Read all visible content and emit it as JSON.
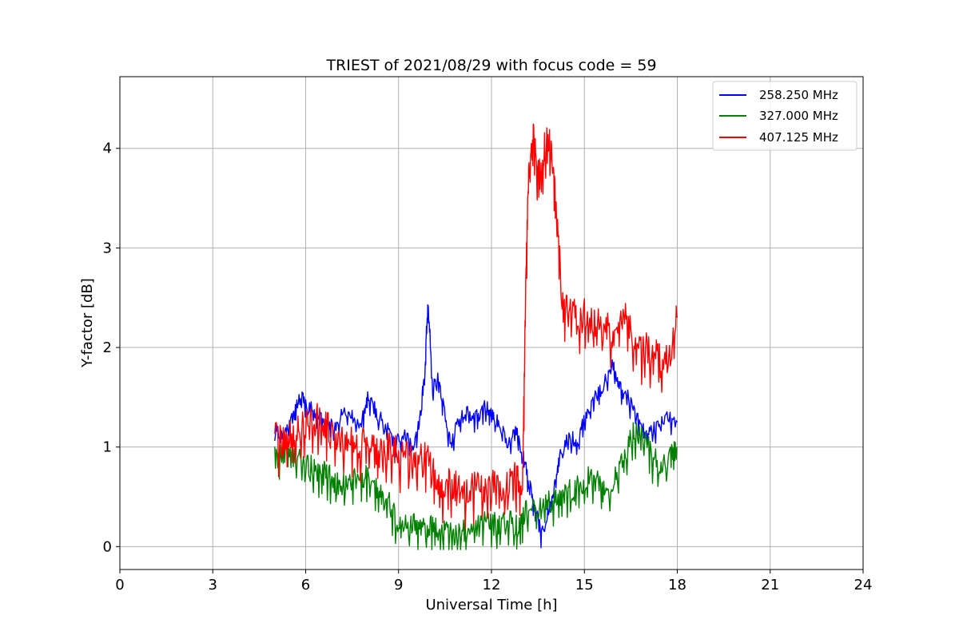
{
  "chart_data": {
    "type": "line",
    "title": "TRIEST of 2021/08/29 with focus code = 59",
    "xlabel": "Universal Time [h]",
    "ylabel": "Y-factor [dB]",
    "xlim": [
      0,
      24
    ],
    "ylim": [
      -0.23,
      4.72
    ],
    "xticks": [
      0,
      3,
      6,
      9,
      12,
      15,
      18,
      21,
      24
    ],
    "yticks": [
      0,
      1,
      2,
      3,
      4
    ],
    "grid": true,
    "legend_position": "top-right",
    "series": [
      {
        "name": "258.250 MHz",
        "color": "#0000ff",
        "x": [
          5.0,
          5.3,
          5.6,
          5.8,
          6.0,
          6.3,
          6.6,
          6.9,
          7.2,
          7.5,
          7.8,
          8.0,
          8.3,
          8.6,
          8.9,
          9.2,
          9.5,
          9.7,
          9.85,
          9.95,
          10.1,
          10.3,
          10.5,
          10.7,
          10.9,
          11.2,
          11.5,
          11.8,
          12.0,
          12.2,
          12.5,
          12.8,
          13.0,
          13.2,
          13.4,
          13.6,
          13.8,
          14.0,
          14.2,
          14.5,
          14.8,
          15.0,
          15.3,
          15.6,
          15.9,
          16.1,
          16.4,
          16.7,
          17.0,
          17.3,
          17.6,
          18.0
        ],
        "y": [
          1.2,
          1.1,
          1.3,
          1.5,
          1.45,
          1.35,
          1.3,
          1.2,
          1.35,
          1.3,
          1.25,
          1.5,
          1.35,
          1.2,
          1.05,
          1.1,
          1.0,
          1.3,
          1.8,
          2.5,
          1.6,
          1.7,
          1.3,
          1.0,
          1.25,
          1.35,
          1.3,
          1.4,
          1.35,
          1.25,
          1.05,
          1.15,
          0.95,
          0.65,
          0.4,
          0.15,
          0.3,
          0.55,
          0.9,
          1.1,
          1.05,
          1.3,
          1.5,
          1.6,
          1.85,
          1.6,
          1.5,
          1.3,
          1.15,
          1.2,
          1.3,
          1.25
        ]
      },
      {
        "name": "327.000 MHz",
        "color": "#008000",
        "x": [
          5.0,
          5.3,
          5.6,
          5.9,
          6.2,
          6.5,
          6.8,
          7.1,
          7.4,
          7.7,
          8.0,
          8.3,
          8.6,
          8.9,
          9.2,
          9.5,
          9.8,
          10.1,
          10.4,
          10.7,
          11.0,
          11.3,
          11.6,
          11.9,
          12.2,
          12.5,
          12.8,
          13.0,
          13.3,
          13.6,
          13.9,
          14.2,
          14.5,
          14.8,
          15.1,
          15.4,
          15.7,
          16.0,
          16.3,
          16.6,
          16.9,
          17.2,
          17.5,
          17.8,
          18.0
        ],
        "y": [
          0.9,
          0.95,
          0.9,
          0.85,
          0.8,
          0.75,
          0.7,
          0.6,
          0.65,
          0.7,
          0.7,
          0.55,
          0.5,
          0.3,
          0.2,
          0.22,
          0.18,
          0.2,
          0.15,
          0.12,
          0.13,
          0.18,
          0.2,
          0.25,
          0.22,
          0.3,
          0.2,
          0.28,
          0.45,
          0.4,
          0.45,
          0.5,
          0.55,
          0.6,
          0.7,
          0.65,
          0.5,
          0.7,
          0.9,
          1.15,
          1.1,
          0.9,
          0.8,
          0.9,
          1.0
        ]
      },
      {
        "name": "407.125 MHz",
        "color": "#ff0000",
        "x": [
          5.0,
          5.3,
          5.6,
          5.9,
          6.2,
          6.5,
          6.8,
          7.1,
          7.4,
          7.7,
          8.0,
          8.3,
          8.6,
          8.9,
          9.2,
          9.5,
          9.8,
          10.1,
          10.4,
          10.7,
          11.0,
          11.3,
          11.6,
          11.9,
          12.2,
          12.5,
          12.8,
          13.0,
          13.1,
          13.2,
          13.35,
          13.5,
          13.65,
          13.8,
          13.95,
          14.1,
          14.3,
          14.5,
          14.8,
          15.1,
          15.4,
          15.7,
          16.0,
          16.3,
          16.6,
          16.9,
          17.2,
          17.5,
          17.8,
          18.0
        ],
        "y": [
          1.1,
          1.05,
          1.15,
          1.2,
          1.3,
          1.25,
          1.15,
          1.1,
          1.05,
          1.0,
          1.05,
          0.95,
          1.0,
          0.95,
          0.9,
          0.85,
          0.9,
          0.8,
          0.6,
          0.65,
          0.55,
          0.55,
          0.6,
          0.55,
          0.65,
          0.6,
          0.7,
          0.55,
          2.5,
          3.8,
          4.1,
          3.7,
          3.85,
          4.2,
          3.9,
          3.3,
          2.4,
          2.45,
          2.3,
          2.35,
          2.25,
          2.2,
          2.15,
          2.3,
          2.05,
          2.0,
          1.95,
          1.85,
          2.0,
          2.3
        ]
      }
    ]
  }
}
